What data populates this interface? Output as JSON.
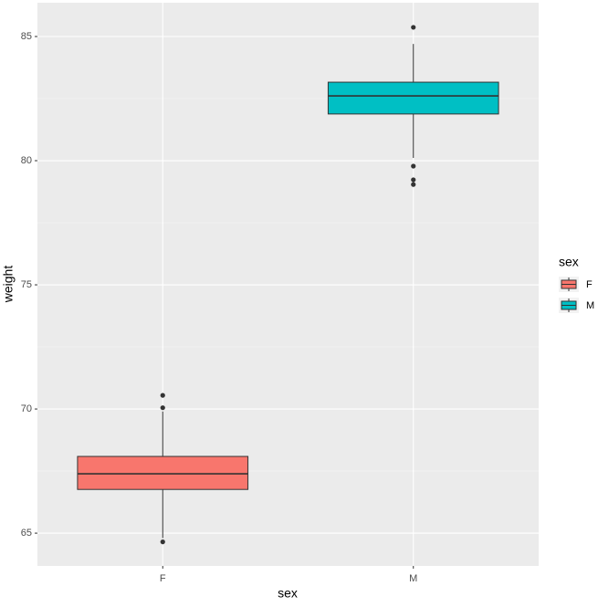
{
  "chart_data": {
    "type": "boxplot",
    "x_label": "sex",
    "y_label": "weight",
    "categories": [
      "F",
      "M"
    ],
    "series": [
      {
        "name": "F",
        "color": "#f8766d",
        "q1": 66.76,
        "median": 67.39,
        "q3": 68.09,
        "whisker_low": 64.8,
        "whisker_high": 69.9,
        "outliers": [
          64.65,
          70.05,
          70.55
        ]
      },
      {
        "name": "M",
        "color": "#00bfc4",
        "q1": 81.88,
        "median": 82.61,
        "q3": 83.16,
        "whisker_low": 80.11,
        "whisker_high": 84.7,
        "outliers": [
          79.04,
          79.23,
          79.78,
          85.37
        ]
      }
    ],
    "legend_title": "sex",
    "ylim": [
      63.68,
      86.36
    ],
    "yticks": [
      65,
      70,
      75,
      80,
      85
    ],
    "grid": true
  }
}
